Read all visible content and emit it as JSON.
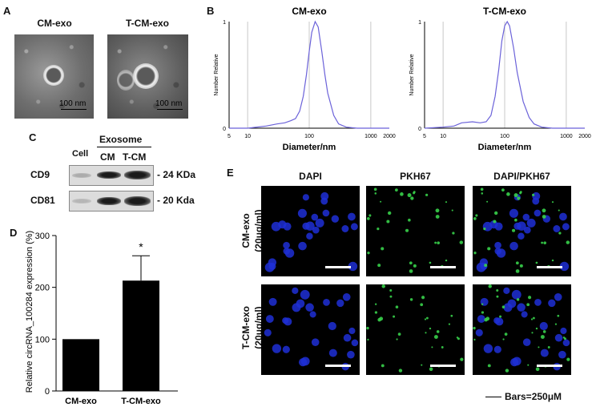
{
  "panels": {
    "A": "A",
    "B": "B",
    "C": "C",
    "D": "D",
    "E": "E"
  },
  "panel_a": {
    "titles": [
      "CM-exo",
      "T-CM-exo"
    ],
    "scale": "100 nm"
  },
  "panel_b": {
    "titles": [
      "CM-exo",
      "T-CM-exo"
    ],
    "ylabel": "Number Relative",
    "xlabel": "Diameter/nm",
    "yticks": [
      "0",
      "1"
    ],
    "xticks": [
      "5",
      "10",
      "100",
      "1000",
      "2000"
    ]
  },
  "panel_c": {
    "group": "Exosome",
    "lanes": [
      "Cell",
      "CM",
      "T-CM"
    ],
    "rows": [
      {
        "name": "CD9",
        "size": "- 24 KDa"
      },
      {
        "name": "CD81",
        "size": "- 20 Kda"
      }
    ]
  },
  "panel_e": {
    "columns": [
      "DAPI",
      "PKH67",
      "DAPI/PKH67"
    ],
    "rows": [
      "CM-exo\n(20μg/ml)",
      "T-CM-exo\n(20μg/ml)"
    ],
    "scale": "Bars=250μM",
    "colors": {
      "dapi": "#1e2fd6",
      "pkh": "#37d04a"
    }
  },
  "chart_data": [
    {
      "type": "line",
      "title": "CM-exo",
      "xlabel": "Diameter/nm",
      "ylabel": "Number Relative",
      "xscale": "log",
      "xlim": [
        5,
        2000
      ],
      "ylim": [
        0,
        1
      ],
      "x": [
        5,
        10,
        20,
        30,
        40,
        50,
        60,
        70,
        80,
        90,
        100,
        110,
        125,
        140,
        160,
        180,
        200,
        250,
        300,
        400,
        600,
        1000,
        2000
      ],
      "y": [
        0,
        0,
        0.02,
        0.04,
        0.05,
        0.07,
        0.09,
        0.16,
        0.3,
        0.5,
        0.72,
        0.9,
        1.0,
        0.95,
        0.72,
        0.5,
        0.33,
        0.12,
        0.04,
        0.01,
        0,
        0,
        0
      ],
      "color": "#6b62d9"
    },
    {
      "type": "line",
      "title": "T-CM-exo",
      "xlabel": "Diameter/nm",
      "ylabel": "Number Relative",
      "xscale": "log",
      "xlim": [
        5,
        2000
      ],
      "ylim": [
        0,
        1
      ],
      "x": [
        5,
        10,
        15,
        20,
        30,
        40,
        50,
        60,
        70,
        80,
        90,
        100,
        110,
        120,
        140,
        160,
        200,
        250,
        300,
        400,
        600,
        1000,
        2000
      ],
      "y": [
        0,
        0.01,
        0.02,
        0.05,
        0.06,
        0.05,
        0.06,
        0.12,
        0.3,
        0.55,
        0.82,
        0.96,
        1.0,
        0.96,
        0.75,
        0.52,
        0.25,
        0.1,
        0.04,
        0.01,
        0,
        0,
        0
      ],
      "color": "#6b62d9"
    },
    {
      "type": "bar",
      "ylabel": "Relative circRNA_100284 expression (%)",
      "categories": [
        "CM-exo",
        "T-CM-exo"
      ],
      "values": [
        100,
        213
      ],
      "errors": [
        0,
        48
      ],
      "annotations": [
        "",
        "*"
      ],
      "ylim": [
        0,
        300
      ],
      "yticks": [
        "0",
        "100",
        "200",
        "300"
      ]
    }
  ]
}
